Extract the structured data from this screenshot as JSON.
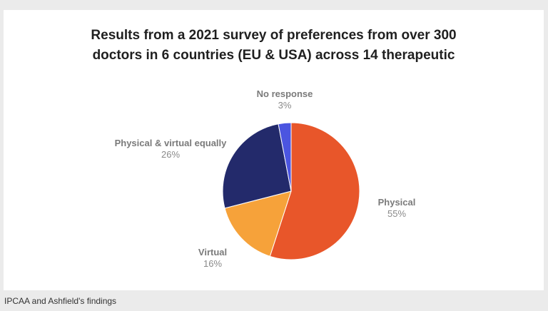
{
  "chart_data": {
    "type": "pie",
    "title_lines": [
      "Results from a 2021 survey of preferences from over 300",
      "doctors in 6 countries (EU & USA) across 14 therapeutic"
    ],
    "slices": [
      {
        "label": "Physical",
        "value": 55,
        "value_label": "55%",
        "color": "#e8562a"
      },
      {
        "label": "Virtual",
        "value": 16,
        "value_label": "16%",
        "color": "#f6a23a"
      },
      {
        "label": "Physical & virtual equally",
        "value": 26,
        "value_label": "26%",
        "color": "#232a6b"
      },
      {
        "label": "No response",
        "value": 3,
        "value_label": "3%",
        "color": "#4b55e0"
      }
    ],
    "legend": "none (labels beside slices)"
  },
  "caption": "IPCAA and Ashfield's findings"
}
